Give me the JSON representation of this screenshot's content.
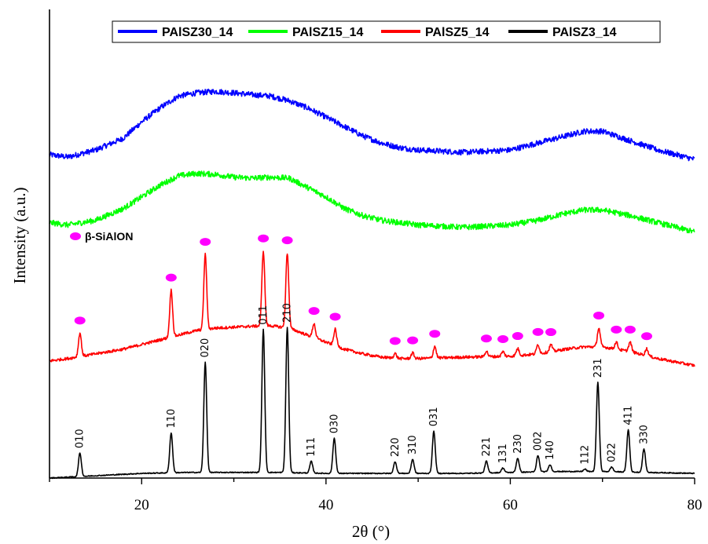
{
  "chart_data": {
    "type": "line",
    "title": "",
    "xlabel": "2θ (°)",
    "ylabel": "Intensity (a.u.)",
    "xlim": [
      10,
      80
    ],
    "xticks": [
      20,
      40,
      60,
      80
    ],
    "yticks_shown": false,
    "grid": false,
    "legend_position": "top",
    "series": [
      {
        "name": "PAlSZ30_14",
        "color": "#0000FF",
        "kind": "amorphous",
        "x": [
          10,
          12,
          15,
          18,
          20,
          22,
          24,
          26,
          28,
          30,
          32,
          34,
          36,
          38,
          40,
          42,
          44,
          46,
          48,
          50,
          55,
          60,
          63,
          66,
          68,
          70,
          73,
          76,
          80
        ],
        "values": [
          0.69,
          0.685,
          0.7,
          0.725,
          0.76,
          0.79,
          0.815,
          0.822,
          0.825,
          0.822,
          0.818,
          0.815,
          0.805,
          0.79,
          0.77,
          0.75,
          0.73,
          0.715,
          0.705,
          0.7,
          0.695,
          0.7,
          0.715,
          0.73,
          0.74,
          0.74,
          0.72,
          0.7,
          0.68
        ]
      },
      {
        "name": "PAlSZ15_14",
        "color": "#00FF00",
        "kind": "amorphous",
        "x": [
          10,
          12,
          15,
          18,
          20,
          22,
          24,
          26,
          28,
          30,
          32,
          34,
          36,
          38,
          40,
          42,
          44,
          46,
          48,
          50,
          55,
          60,
          63,
          66,
          68,
          70,
          73,
          76,
          80
        ],
        "values": [
          0.545,
          0.54,
          0.55,
          0.575,
          0.6,
          0.625,
          0.645,
          0.65,
          0.648,
          0.642,
          0.64,
          0.642,
          0.64,
          0.62,
          0.6,
          0.575,
          0.56,
          0.55,
          0.545,
          0.54,
          0.535,
          0.54,
          0.55,
          0.565,
          0.572,
          0.572,
          0.56,
          0.545,
          0.525
        ]
      },
      {
        "name": "PAlSZ5_14",
        "color": "#FF0000",
        "kind": "crystalline",
        "x": [
          10,
          12,
          15,
          18,
          20,
          22,
          24,
          26,
          28,
          30,
          32,
          34,
          36,
          38,
          40,
          42,
          44,
          46,
          48,
          50,
          55,
          60,
          63,
          66,
          68,
          70,
          73,
          76,
          80
        ],
        "values": [
          0.25,
          0.255,
          0.265,
          0.275,
          0.285,
          0.295,
          0.305,
          0.315,
          0.32,
          0.322,
          0.324,
          0.325,
          0.32,
          0.305,
          0.29,
          0.275,
          0.265,
          0.258,
          0.255,
          0.255,
          0.258,
          0.26,
          0.265,
          0.275,
          0.28,
          0.28,
          0.27,
          0.255,
          0.24
        ],
        "peaks": [
          {
            "x": 13.3,
            "h": 0.05
          },
          {
            "x": 23.2,
            "h": 0.1
          },
          {
            "x": 26.9,
            "h": 0.16
          },
          {
            "x": 33.2,
            "h": 0.16
          },
          {
            "x": 35.8,
            "h": 0.16
          },
          {
            "x": 38.7,
            "h": 0.03
          },
          {
            "x": 41.0,
            "h": 0.035
          },
          {
            "x": 47.5,
            "h": 0.01
          },
          {
            "x": 49.4,
            "h": 0.012
          },
          {
            "x": 51.8,
            "h": 0.025
          },
          {
            "x": 57.4,
            "h": 0.012
          },
          {
            "x": 59.2,
            "h": 0.01
          },
          {
            "x": 60.8,
            "h": 0.015
          },
          {
            "x": 63.0,
            "h": 0.02
          },
          {
            "x": 64.4,
            "h": 0.015
          },
          {
            "x": 69.6,
            "h": 0.04
          },
          {
            "x": 71.5,
            "h": 0.015
          },
          {
            "x": 73.0,
            "h": 0.02
          },
          {
            "x": 74.8,
            "h": 0.015
          }
        ]
      },
      {
        "name": "PAlSZ3_14",
        "color": "#000000",
        "kind": "crystalline",
        "x": [
          10,
          15,
          20,
          25,
          30,
          35,
          40,
          45,
          50,
          55,
          60,
          65,
          70,
          75,
          80
        ],
        "values": [
          0.0,
          0.005,
          0.01,
          0.012,
          0.012,
          0.012,
          0.01,
          0.01,
          0.01,
          0.01,
          0.012,
          0.014,
          0.014,
          0.012,
          0.01
        ],
        "peaks": [
          {
            "x": 13.3,
            "h": 0.05
          },
          {
            "x": 23.2,
            "h": 0.085
          },
          {
            "x": 26.9,
            "h": 0.235
          },
          {
            "x": 33.2,
            "h": 0.305
          },
          {
            "x": 35.8,
            "h": 0.31
          },
          {
            "x": 38.4,
            "h": 0.025
          },
          {
            "x": 40.9,
            "h": 0.075
          },
          {
            "x": 47.5,
            "h": 0.025
          },
          {
            "x": 49.4,
            "h": 0.03
          },
          {
            "x": 51.7,
            "h": 0.09
          },
          {
            "x": 57.4,
            "h": 0.025
          },
          {
            "x": 59.2,
            "h": 0.01
          },
          {
            "x": 60.8,
            "h": 0.03
          },
          {
            "x": 63.0,
            "h": 0.035
          },
          {
            "x": 64.3,
            "h": 0.015
          },
          {
            "x": 68.1,
            "h": 0.005
          },
          {
            "x": 69.5,
            "h": 0.19
          },
          {
            "x": 71.0,
            "h": 0.01
          },
          {
            "x": 72.8,
            "h": 0.09
          },
          {
            "x": 74.5,
            "h": 0.05
          }
        ]
      }
    ],
    "hkl_labels": [
      {
        "text": "010",
        "x": 13.3
      },
      {
        "text": "110",
        "x": 23.2
      },
      {
        "text": "020",
        "x": 26.9
      },
      {
        "text": "011",
        "x": 33.2
      },
      {
        "text": "210",
        "x": 35.8
      },
      {
        "text": "111",
        "x": 38.4
      },
      {
        "text": "030",
        "x": 40.9
      },
      {
        "text": "220",
        "x": 47.5
      },
      {
        "text": "310",
        "x": 49.4
      },
      {
        "text": "031",
        "x": 51.7
      },
      {
        "text": "221",
        "x": 57.4
      },
      {
        "text": "131",
        "x": 59.2
      },
      {
        "text": "230",
        "x": 60.8
      },
      {
        "text": "002",
        "x": 63.0
      },
      {
        "text": "140",
        "x": 64.3
      },
      {
        "text": "112",
        "x": 68.1
      },
      {
        "text": "231",
        "x": 69.5
      },
      {
        "text": "022",
        "x": 71.0
      },
      {
        "text": "411",
        "x": 72.8
      },
      {
        "text": "330",
        "x": 74.5
      }
    ],
    "sialon_marker": {
      "label": "β-SiAlON",
      "color": "#FF00FF",
      "x": [
        13.3,
        23.2,
        26.9,
        33.2,
        35.8,
        38.7,
        41.0,
        47.5,
        49.4,
        51.8,
        57.4,
        59.2,
        60.8,
        63.0,
        64.4,
        69.6,
        71.5,
        73.0,
        74.8
      ]
    }
  }
}
